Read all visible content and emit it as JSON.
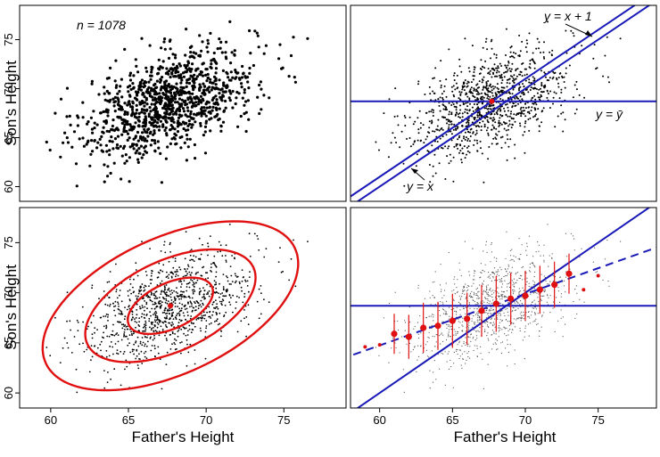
{
  "chart_data": [
    {
      "panel": "top-left",
      "type": "scatter",
      "annotation": "n = 1078",
      "xlim": [
        58,
        79
      ],
      "ylim": [
        58.5,
        78.5
      ],
      "ylabel": "Son's Height",
      "xlabel": "",
      "yticks": [
        60,
        65,
        70,
        75
      ],
      "xticks": [],
      "n_points": 1078,
      "mean_x": 67.7,
      "mean_y": 68.7,
      "sd_x": 2.74,
      "sd_y": 2.81,
      "correlation": 0.5,
      "point_color": "#000000"
    },
    {
      "panel": "top-right",
      "type": "scatter",
      "xlim": [
        58,
        79
      ],
      "ylim": [
        58.5,
        78.5
      ],
      "yticks": [],
      "xticks": [],
      "lines": [
        {
          "label": "y = x",
          "slope": 1,
          "intercept": 0,
          "color": "#1a1ab8"
        },
        {
          "label": "y = x + 1",
          "slope": 1,
          "intercept": 1,
          "color": "#1a1ab8"
        },
        {
          "label": "y = ȳ",
          "slope": 0,
          "intercept": 68.7,
          "color": "#1a1ab8"
        }
      ],
      "mean_point": {
        "x": 67.7,
        "y": 68.7,
        "color": "#e01010"
      },
      "point_color": "#000000"
    },
    {
      "panel": "bottom-left",
      "type": "scatter",
      "xlim": [
        58,
        79
      ],
      "ylim": [
        58.5,
        78.5
      ],
      "ylabel": "Son's Height",
      "xlabel": "Father's Height",
      "xticks": [
        60,
        65,
        70,
        75
      ],
      "yticks": [
        60,
        65,
        70,
        75
      ],
      "ellipse_levels_sd": [
        1,
        2,
        3
      ],
      "ellipse_color": "#e01010",
      "center": {
        "x": 67.7,
        "y": 68.7
      },
      "point_color": "#000000"
    },
    {
      "panel": "bottom-right",
      "type": "scatter",
      "xlim": [
        58,
        79
      ],
      "ylim": [
        58.5,
        78.5
      ],
      "xlabel": "Father's Height",
      "xticks": [
        60,
        65,
        70,
        75
      ],
      "yticks": [],
      "lines": [
        {
          "style": "solid",
          "slope": 1,
          "intercept": 0,
          "color": "#1a1ab8"
        },
        {
          "style": "solid",
          "slope": 0,
          "intercept": 68.7,
          "color": "#1a1ab8"
        },
        {
          "style": "dashed",
          "slope": 0.514,
          "intercept": 33.9,
          "color": "#1a1ab8"
        }
      ],
      "conditional_means": {
        "x": [
          59,
          60,
          61,
          62,
          63,
          64,
          65,
          66,
          67,
          68,
          69,
          70,
          71,
          72,
          73,
          74,
          75
        ],
        "y": [
          64.6,
          64.8,
          65.9,
          65.6,
          66.5,
          66.7,
          67.2,
          67.4,
          68.2,
          68.9,
          69.4,
          69.7,
          70.3,
          70.8,
          71.9,
          70.3,
          71.7
        ],
        "sd": [
          0,
          0,
          2.0,
          2.2,
          2.5,
          2.4,
          2.7,
          2.6,
          2.6,
          2.8,
          2.6,
          2.5,
          2.4,
          2.3,
          2.0,
          0,
          0
        ],
        "color": "#e01010"
      },
      "point_color": "#555555"
    }
  ]
}
